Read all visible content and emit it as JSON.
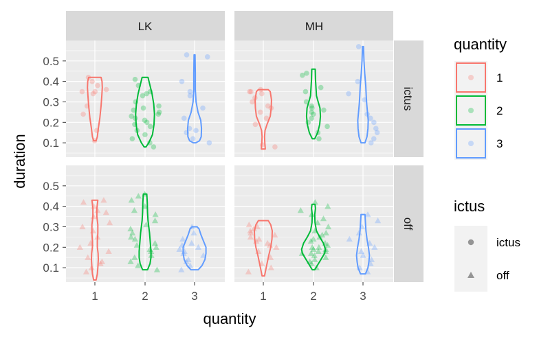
{
  "chart_data": {
    "type": "violin",
    "facet_cols": [
      "LK",
      "MH"
    ],
    "facet_rows": [
      "ictus",
      "off"
    ],
    "xlabel": "quantity",
    "ylabel": "duration",
    "categories": [
      "1",
      "2",
      "3"
    ],
    "y_ticks": [
      "0.1",
      "0.2",
      "0.3",
      "0.4",
      "0.5"
    ],
    "ylim": [
      0.03,
      0.6
    ],
    "grid": true,
    "legends": [
      {
        "title": "quantity",
        "entries": [
          "1",
          "2",
          "3"
        ]
      },
      {
        "title": "ictus",
        "entries": [
          "ictus",
          "off"
        ]
      }
    ],
    "colors": {
      "1": "#F8766D",
      "2": "#00BA38",
      "3": "#619CFF"
    },
    "panels": [
      {
        "col": "LK",
        "row": "ictus",
        "violins": [
          {
            "q": "1",
            "shape": [
              [
                0.11,
                0.05
              ],
              [
                0.13,
                0.1
              ],
              [
                0.17,
                0.14
              ],
              [
                0.22,
                0.2
              ],
              [
                0.28,
                0.25
              ],
              [
                0.33,
                0.28
              ],
              [
                0.37,
                0.3
              ],
              [
                0.4,
                0.29
              ],
              [
                0.42,
                0.25
              ]
            ]
          },
          {
            "q": "2",
            "shape": [
              [
                0.08,
                0.04
              ],
              [
                0.1,
                0.15
              ],
              [
                0.14,
                0.3
              ],
              [
                0.19,
                0.36
              ],
              [
                0.24,
                0.38
              ],
              [
                0.29,
                0.35
              ],
              [
                0.34,
                0.28
              ],
              [
                0.38,
                0.2
              ],
              [
                0.42,
                0.12
              ]
            ]
          },
          {
            "q": "3",
            "shape": [
              [
                0.1,
                0.05
              ],
              [
                0.11,
                0.2
              ],
              [
                0.13,
                0.27
              ],
              [
                0.17,
                0.28
              ],
              [
                0.21,
                0.25
              ],
              [
                0.25,
                0.14
              ],
              [
                0.3,
                0.06
              ],
              [
                0.36,
                0.03
              ],
              [
                0.44,
                0.03
              ],
              [
                0.53,
                0.02
              ]
            ]
          }
        ],
        "points": [
          {
            "q": "1",
            "y": [
              0.11,
              0.16,
              0.24,
              0.28,
              0.34,
              0.35,
              0.35,
              0.36,
              0.38,
              0.4,
              0.42
            ]
          },
          {
            "q": "2",
            "y": [
              0.08,
              0.1,
              0.12,
              0.14,
              0.16,
              0.18,
              0.19,
              0.2,
              0.21,
              0.22,
              0.23,
              0.24,
              0.25,
              0.26,
              0.27,
              0.28,
              0.3,
              0.33,
              0.34,
              0.35,
              0.38,
              0.41
            ]
          },
          {
            "q": "3",
            "y": [
              0.1,
              0.12,
              0.15,
              0.16,
              0.17,
              0.22,
              0.27,
              0.33,
              0.35,
              0.4,
              0.52,
              0.53
            ]
          }
        ]
      },
      {
        "col": "MH",
        "row": "ictus",
        "violins": [
          {
            "q": "1",
            "shape": [
              [
                0.07,
                0.08
              ],
              [
                0.1,
                0.06
              ],
              [
                0.13,
                0.05
              ],
              [
                0.16,
                0.07
              ],
              [
                0.19,
                0.15
              ],
              [
                0.23,
                0.28
              ],
              [
                0.27,
                0.32
              ],
              [
                0.31,
                0.33
              ],
              [
                0.35,
                0.28
              ],
              [
                0.36,
                0.2
              ]
            ]
          },
          {
            "q": "2",
            "shape": [
              [
                0.12,
                0.05
              ],
              [
                0.15,
                0.17
              ],
              [
                0.19,
                0.25
              ],
              [
                0.23,
                0.28
              ],
              [
                0.27,
                0.26
              ],
              [
                0.3,
                0.19
              ],
              [
                0.33,
                0.12
              ],
              [
                0.37,
                0.1
              ],
              [
                0.41,
                0.08
              ],
              [
                0.46,
                0.07
              ]
            ]
          },
          {
            "q": "3",
            "shape": [
              [
                0.1,
                0.08
              ],
              [
                0.13,
                0.16
              ],
              [
                0.17,
                0.2
              ],
              [
                0.21,
                0.21
              ],
              [
                0.25,
                0.18
              ],
              [
                0.29,
                0.15
              ],
              [
                0.33,
                0.13
              ],
              [
                0.38,
                0.11
              ],
              [
                0.44,
                0.07
              ],
              [
                0.5,
                0.04
              ],
              [
                0.57,
                0.02
              ]
            ]
          }
        ],
        "points": [
          {
            "q": "1",
            "y": [
              0.08,
              0.09,
              0.19,
              0.22,
              0.25,
              0.27,
              0.28,
              0.3,
              0.32,
              0.34,
              0.35,
              0.35,
              0.36
            ]
          },
          {
            "q": "2",
            "y": [
              0.12,
              0.15,
              0.18,
              0.2,
              0.22,
              0.24,
              0.25,
              0.26,
              0.27,
              0.28,
              0.3,
              0.35,
              0.37,
              0.43,
              0.44
            ]
          },
          {
            "q": "3",
            "y": [
              0.1,
              0.12,
              0.15,
              0.17,
              0.2,
              0.22,
              0.24,
              0.31,
              0.34,
              0.4,
              0.57
            ]
          }
        ]
      },
      {
        "col": "LK",
        "row": "off",
        "violins": [
          {
            "q": "1",
            "shape": [
              [
                0.04,
                0.05
              ],
              [
                0.07,
                0.1
              ],
              [
                0.1,
                0.12
              ],
              [
                0.14,
                0.14
              ],
              [
                0.17,
                0.13
              ],
              [
                0.2,
                0.1
              ],
              [
                0.23,
                0.1
              ],
              [
                0.27,
                0.12
              ],
              [
                0.31,
                0.12
              ],
              [
                0.35,
                0.08
              ],
              [
                0.39,
                0.08
              ],
              [
                0.43,
                0.12
              ]
            ]
          },
          {
            "q": "2",
            "shape": [
              [
                0.09,
                0.1
              ],
              [
                0.12,
                0.2
              ],
              [
                0.15,
                0.24
              ],
              [
                0.18,
                0.24
              ],
              [
                0.21,
                0.22
              ],
              [
                0.24,
                0.2
              ],
              [
                0.27,
                0.18
              ],
              [
                0.3,
                0.15
              ],
              [
                0.33,
                0.12
              ],
              [
                0.37,
                0.1
              ],
              [
                0.42,
                0.09
              ],
              [
                0.46,
                0.07
              ]
            ]
          },
          {
            "q": "3",
            "shape": [
              [
                0.09,
                0.15
              ],
              [
                0.11,
                0.3
              ],
              [
                0.14,
                0.42
              ],
              [
                0.17,
                0.46
              ],
              [
                0.2,
                0.46
              ],
              [
                0.23,
                0.36
              ],
              [
                0.26,
                0.26
              ],
              [
                0.29,
                0.18
              ],
              [
                0.3,
                0.1
              ]
            ]
          }
        ],
        "points": [
          {
            "q": "1",
            "y": [
              0.08,
              0.1,
              0.12,
              0.13,
              0.15,
              0.18,
              0.2,
              0.22,
              0.25,
              0.28,
              0.3,
              0.32,
              0.35,
              0.37,
              0.38,
              0.4,
              0.42,
              0.43
            ]
          },
          {
            "q": "2",
            "y": [
              0.09,
              0.11,
              0.13,
              0.15,
              0.16,
              0.18,
              0.19,
              0.2,
              0.21,
              0.22,
              0.24,
              0.25,
              0.27,
              0.29,
              0.31,
              0.33,
              0.36,
              0.38,
              0.4,
              0.43,
              0.45,
              0.46
            ]
          },
          {
            "q": "3",
            "y": [
              0.09,
              0.11,
              0.13,
              0.14,
              0.16,
              0.17,
              0.18,
              0.19,
              0.2,
              0.21,
              0.22,
              0.24,
              0.27,
              0.3
            ]
          }
        ]
      },
      {
        "col": "MH",
        "row": "off",
        "violins": [
          {
            "q": "1",
            "shape": [
              [
                0.06,
                0.05
              ],
              [
                0.09,
                0.1
              ],
              [
                0.12,
                0.15
              ],
              [
                0.16,
                0.22
              ],
              [
                0.2,
                0.3
              ],
              [
                0.24,
                0.35
              ],
              [
                0.28,
                0.36
              ],
              [
                0.31,
                0.3
              ],
              [
                0.33,
                0.2
              ]
            ]
          },
          {
            "q": "2",
            "shape": [
              [
                0.09,
                0.05
              ],
              [
                0.11,
                0.15
              ],
              [
                0.14,
                0.3
              ],
              [
                0.17,
                0.45
              ],
              [
                0.19,
                0.48
              ],
              [
                0.22,
                0.4
              ],
              [
                0.25,
                0.25
              ],
              [
                0.28,
                0.12
              ],
              [
                0.32,
                0.06
              ],
              [
                0.36,
                0.05
              ],
              [
                0.39,
                0.08
              ],
              [
                0.41,
                0.06
              ]
            ]
          },
          {
            "q": "3",
            "shape": [
              [
                0.07,
                0.1
              ],
              [
                0.1,
                0.2
              ],
              [
                0.13,
                0.24
              ],
              [
                0.16,
                0.26
              ],
              [
                0.2,
                0.22
              ],
              [
                0.24,
                0.16
              ],
              [
                0.28,
                0.12
              ],
              [
                0.32,
                0.1
              ],
              [
                0.36,
                0.08
              ]
            ]
          }
        ],
        "points": [
          {
            "q": "1",
            "y": [
              0.08,
              0.1,
              0.12,
              0.15,
              0.18,
              0.2,
              0.21,
              0.22,
              0.23,
              0.24,
              0.25,
              0.26,
              0.27,
              0.28,
              0.29,
              0.3,
              0.31
            ]
          },
          {
            "q": "2",
            "y": [
              0.1,
              0.12,
              0.13,
              0.14,
              0.15,
              0.16,
              0.17,
              0.17,
              0.18,
              0.18,
              0.19,
              0.19,
              0.2,
              0.2,
              0.21,
              0.22,
              0.23,
              0.24,
              0.25,
              0.26,
              0.27,
              0.28,
              0.3,
              0.32,
              0.34,
              0.36,
              0.38,
              0.4,
              0.42
            ]
          },
          {
            "q": "3",
            "y": [
              0.08,
              0.1,
              0.12,
              0.14,
              0.16,
              0.18,
              0.2,
              0.22,
              0.24,
              0.27,
              0.3,
              0.33,
              0.36
            ]
          }
        ]
      }
    ]
  }
}
